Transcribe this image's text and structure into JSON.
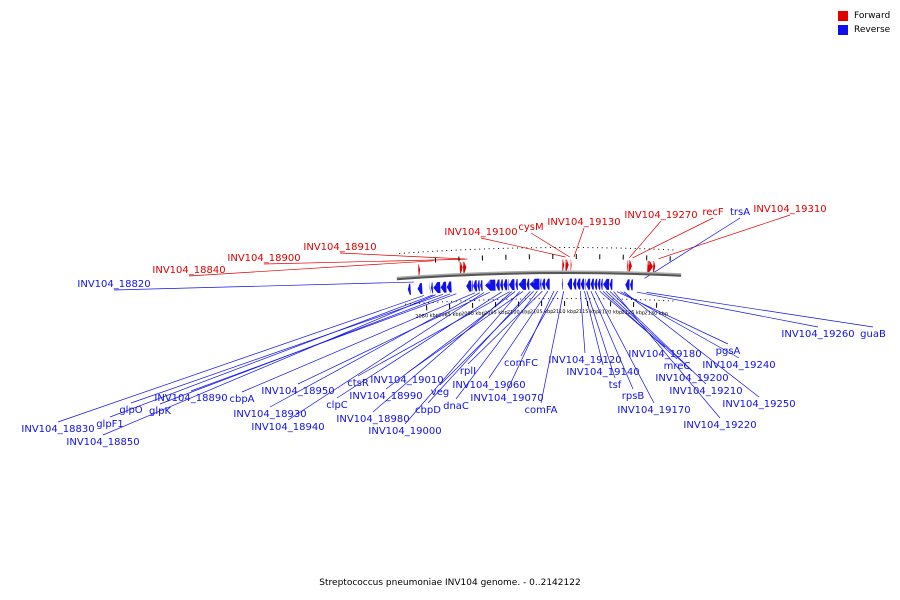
{
  "legend": {
    "forward_label": "Forward",
    "reverse_label": "Reverse",
    "forward_color": "#e00000",
    "reverse_color": "#1010ee"
  },
  "caption": "Streptococcus pneumoniae INV104 genome. - 0..2142122",
  "ticks": [
    {
      "label": "2080 kbp",
      "kbp": 2080
    },
    {
      "label": "2085 kbp",
      "kbp": 2085
    },
    {
      "label": "2090 kbp",
      "kbp": 2090
    },
    {
      "label": "2095 kbp",
      "kbp": 2095
    },
    {
      "label": "2100 kbp",
      "kbp": 2100
    },
    {
      "label": "2105 kbp",
      "kbp": 2105
    },
    {
      "label": "2110 kbp",
      "kbp": 2110
    },
    {
      "label": "2115 kbp",
      "kbp": 2115
    },
    {
      "label": "2120 kbp",
      "kbp": 2120
    },
    {
      "label": "2125 kbp",
      "kbp": 2125
    },
    {
      "label": "2130 kbp",
      "kbp": 2130
    }
  ],
  "forward_labels": [
    {
      "name": "INV104_18840",
      "kbp": 2082.1
    },
    {
      "name": "INV104_18900",
      "kbp": 2088.7
    },
    {
      "name": "INV104_18910",
      "kbp": 2089.3
    },
    {
      "name": "INV104_19100",
      "kbp": 2110.2
    },
    {
      "name": "cysM",
      "kbp": 2111.1
    },
    {
      "name": "INV104_19130",
      "kbp": 2112.0
    },
    {
      "name": "INV104_19270",
      "kbp": 2123.8
    },
    {
      "name": "recF",
      "kbp": 2124.5
    },
    {
      "name": "INV104_19310",
      "kbp": 2130.0
    }
  ],
  "reverse_labels_top": [
    {
      "name": "INV104_18820",
      "kbp": 2077.6
    },
    {
      "name": "trsA",
      "kbp": 2127.2
    }
  ],
  "reverse_labels_bottom": [
    {
      "name": "INV104_18830",
      "kbp": 2079.6
    },
    {
      "name": "glpF1",
      "kbp": 2081.5
    },
    {
      "name": "INV104_18850",
      "kbp": 2082.1
    },
    {
      "name": "glpO",
      "kbp": 2083.7
    },
    {
      "name": "glpK",
      "kbp": 2085.2
    },
    {
      "name": "INV104_18890",
      "kbp": 2086.6
    },
    {
      "name": "cbpA",
      "kbp": 2090.6
    },
    {
      "name": "INV104_18930",
      "kbp": 2091.7
    },
    {
      "name": "INV104_18940",
      "kbp": 2092.6
    },
    {
      "name": "INV104_18950",
      "kbp": 2093.8
    },
    {
      "name": "clpC",
      "kbp": 2096.4
    },
    {
      "name": "ctsR",
      "kbp": 2098.1
    },
    {
      "name": "INV104_18980",
      "kbp": 2098.6
    },
    {
      "name": "INV104_18990",
      "kbp": 2099.3
    },
    {
      "name": "INV104_19000",
      "kbp": 2100.3
    },
    {
      "name": "INV104_19010",
      "kbp": 2101.0
    },
    {
      "name": "cbpD",
      "kbp": 2102.6
    },
    {
      "name": "veg",
      "kbp": 2103.3
    },
    {
      "name": "dnaC",
      "kbp": 2104.1
    },
    {
      "name": "rplI",
      "kbp": 2105.2
    },
    {
      "name": "INV104_19060",
      "kbp": 2106.4
    },
    {
      "name": "INV104_19070",
      "kbp": 2107.7
    },
    {
      "name": "comFC",
      "kbp": 2108.5
    },
    {
      "name": "comFA",
      "kbp": 2109.8
    },
    {
      "name": "INV104_19120",
      "kbp": 2113.4
    },
    {
      "name": "INV104_19140",
      "kbp": 2114.3
    },
    {
      "name": "tsf",
      "kbp": 2114.8
    },
    {
      "name": "rpsB",
      "kbp": 2115.7
    },
    {
      "name": "INV104_19170",
      "kbp": 2116.6
    },
    {
      "name": "INV104_19180",
      "kbp": 2117.6
    },
    {
      "name": "mreC",
      "kbp": 2118.3
    },
    {
      "name": "INV104_19200",
      "kbp": 2119.0
    },
    {
      "name": "INV104_19210",
      "kbp": 2119.8
    },
    {
      "name": "INV104_19220",
      "kbp": 2120.6
    },
    {
      "name": "pgsA",
      "kbp": 2121.3
    },
    {
      "name": "INV104_19240",
      "kbp": 2122.1
    },
    {
      "name": "INV104_19250",
      "kbp": 2122.8
    },
    {
      "name": "INV104_19260",
      "kbp": 2125.6
    },
    {
      "name": "guaB",
      "kbp": 2127.7
    }
  ],
  "forward_genes": [
    {
      "start": 2078.7,
      "end": 2079.1
    },
    {
      "start": 2087.6,
      "end": 2088.2
    },
    {
      "start": 2088.3,
      "end": 2089.0
    },
    {
      "start": 2109.5,
      "end": 2109.9
    },
    {
      "start": 2110.2,
      "end": 2110.9
    },
    {
      "start": 2111.3,
      "end": 2111.5
    },
    {
      "start": 2123.4,
      "end": 2123.6
    },
    {
      "start": 2123.7,
      "end": 2124.4
    },
    {
      "start": 2127.7,
      "end": 2128.9
    },
    {
      "start": 2128.95,
      "end": 2129.4
    }
  ],
  "reverse_genes": [
    {
      "start": 2076.2,
      "end": 2076.8
    },
    {
      "start": 2078.3,
      "end": 2079.3
    },
    {
      "start": 2080.9,
      "end": 2081.0
    },
    {
      "start": 2081.2,
      "end": 2081.6
    },
    {
      "start": 2081.7,
      "end": 2083.2
    },
    {
      "start": 2083.3,
      "end": 2084.5
    },
    {
      "start": 2084.6,
      "end": 2085.6
    },
    {
      "start": 2088.8,
      "end": 2089.9
    },
    {
      "start": 2090.0,
      "end": 2090.2
    },
    {
      "start": 2090.3,
      "end": 2091.1
    },
    {
      "start": 2091.2,
      "end": 2091.7
    },
    {
      "start": 2091.8,
      "end": 2092.3
    },
    {
      "start": 2092.9,
      "end": 2095.1
    },
    {
      "start": 2095.2,
      "end": 2096.0
    },
    {
      "start": 2096.1,
      "end": 2096.7
    },
    {
      "start": 2096.8,
      "end": 2097.6
    },
    {
      "start": 2097.7,
      "end": 2097.9
    },
    {
      "start": 2098.0,
      "end": 2099.2
    },
    {
      "start": 2099.4,
      "end": 2099.9
    },
    {
      "start": 2100.1,
      "end": 2101.7
    },
    {
      "start": 2101.8,
      "end": 2102.4
    },
    {
      "start": 2102.5,
      "end": 2104.6
    },
    {
      "start": 2104.7,
      "end": 2105.0
    },
    {
      "start": 2105.1,
      "end": 2105.8
    },
    {
      "start": 2105.9,
      "end": 2106.8
    },
    {
      "start": 2109.4,
      "end": 2109.6
    },
    {
      "start": 2110.6,
      "end": 2111.6
    },
    {
      "start": 2111.8,
      "end": 2112.5
    },
    {
      "start": 2112.6,
      "end": 2113.4
    },
    {
      "start": 2113.5,
      "end": 2114.2
    },
    {
      "start": 2114.3,
      "end": 2114.5
    },
    {
      "start": 2114.6,
      "end": 2115.5
    },
    {
      "start": 2115.6,
      "end": 2116.3
    },
    {
      "start": 2116.4,
      "end": 2117.0
    },
    {
      "start": 2117.1,
      "end": 2117.7
    },
    {
      "start": 2117.8,
      "end": 2118.2
    },
    {
      "start": 2118.3,
      "end": 2119.6
    },
    {
      "start": 2119.7,
      "end": 2120.3
    },
    {
      "start": 2123.1,
      "end": 2124.0
    },
    {
      "start": 2124.1,
      "end": 2124.7
    }
  ]
}
